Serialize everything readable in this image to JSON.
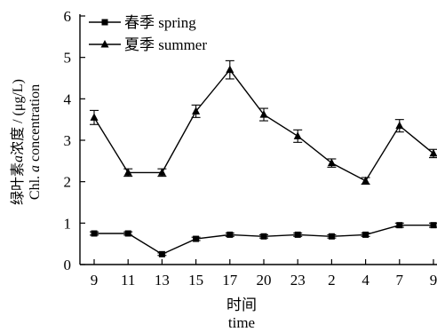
{
  "chart_data": {
    "type": "line",
    "x_label_cn": "时间",
    "x_label_en": "time",
    "y_label_cn_prefix": "绿叶素",
    "y_label_cn_italic": "a",
    "y_label_cn_suffix": "浓度 / (μg/L)",
    "y_label_en_prefix": "Chl. ",
    "y_label_en_italic": "a",
    "y_label_en_suffix": " concentration",
    "categories": [
      "9",
      "11",
      "13",
      "15",
      "17",
      "20",
      "23",
      "2",
      "4",
      "7",
      "9"
    ],
    "ylim": [
      0,
      6
    ],
    "yticks": [
      0,
      1,
      2,
      3,
      4,
      5,
      6
    ],
    "legend_position": "top-left",
    "series": [
      {
        "name": "春季  spring",
        "marker": "square",
        "values": [
          0.75,
          0.75,
          0.25,
          0.62,
          0.72,
          0.68,
          0.72,
          0.68,
          0.72,
          0.95,
          0.95
        ],
        "errors": [
          0.04,
          0.04,
          0.03,
          0.04,
          0.04,
          0.04,
          0.04,
          0.04,
          0.04,
          0.05,
          0.05
        ]
      },
      {
        "name": "夏季  summer",
        "marker": "triangle",
        "values": [
          3.55,
          2.22,
          2.22,
          3.7,
          4.7,
          3.62,
          3.1,
          2.45,
          2.02,
          3.35,
          2.68
        ],
        "errors": [
          0.17,
          0.09,
          0.09,
          0.15,
          0.22,
          0.15,
          0.15,
          0.1,
          0.08,
          0.15,
          0.1
        ]
      }
    ]
  }
}
